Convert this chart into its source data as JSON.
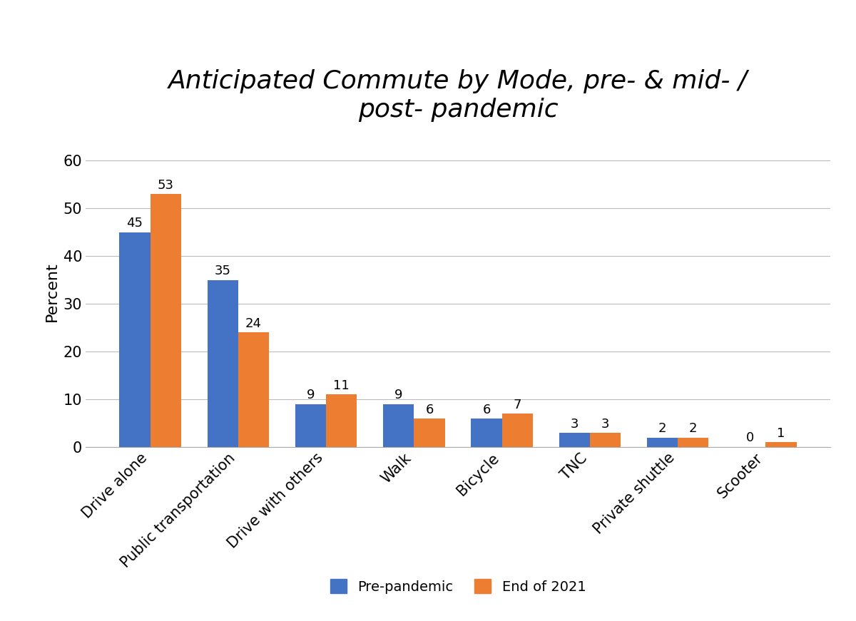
{
  "title": "Anticipated Commute by Mode, pre- & mid- /\npost- pandemic",
  "categories": [
    "Drive alone",
    "Public transportation",
    "Drive with others",
    "Walk",
    "Bicycle",
    "TNC",
    "Private shuttle",
    "Scooter"
  ],
  "pre_pandemic": [
    45,
    35,
    9,
    9,
    6,
    3,
    2,
    0
  ],
  "end_of_2021": [
    53,
    24,
    11,
    6,
    7,
    3,
    2,
    1
  ],
  "color_pre": "#4472C4",
  "color_2021": "#ED7D31",
  "ylabel": "Percent",
  "ylim": [
    0,
    65
  ],
  "yticks": [
    0,
    10,
    20,
    30,
    40,
    50,
    60
  ],
  "legend_pre": "Pre-pandemic",
  "legend_2021": "End of 2021",
  "bar_width": 0.35,
  "title_fontsize": 26,
  "axis_label_fontsize": 16,
  "tick_fontsize": 15,
  "bar_label_fontsize": 13,
  "legend_fontsize": 14,
  "background_color": "#ffffff",
  "grid_color": "#bbbbbb"
}
